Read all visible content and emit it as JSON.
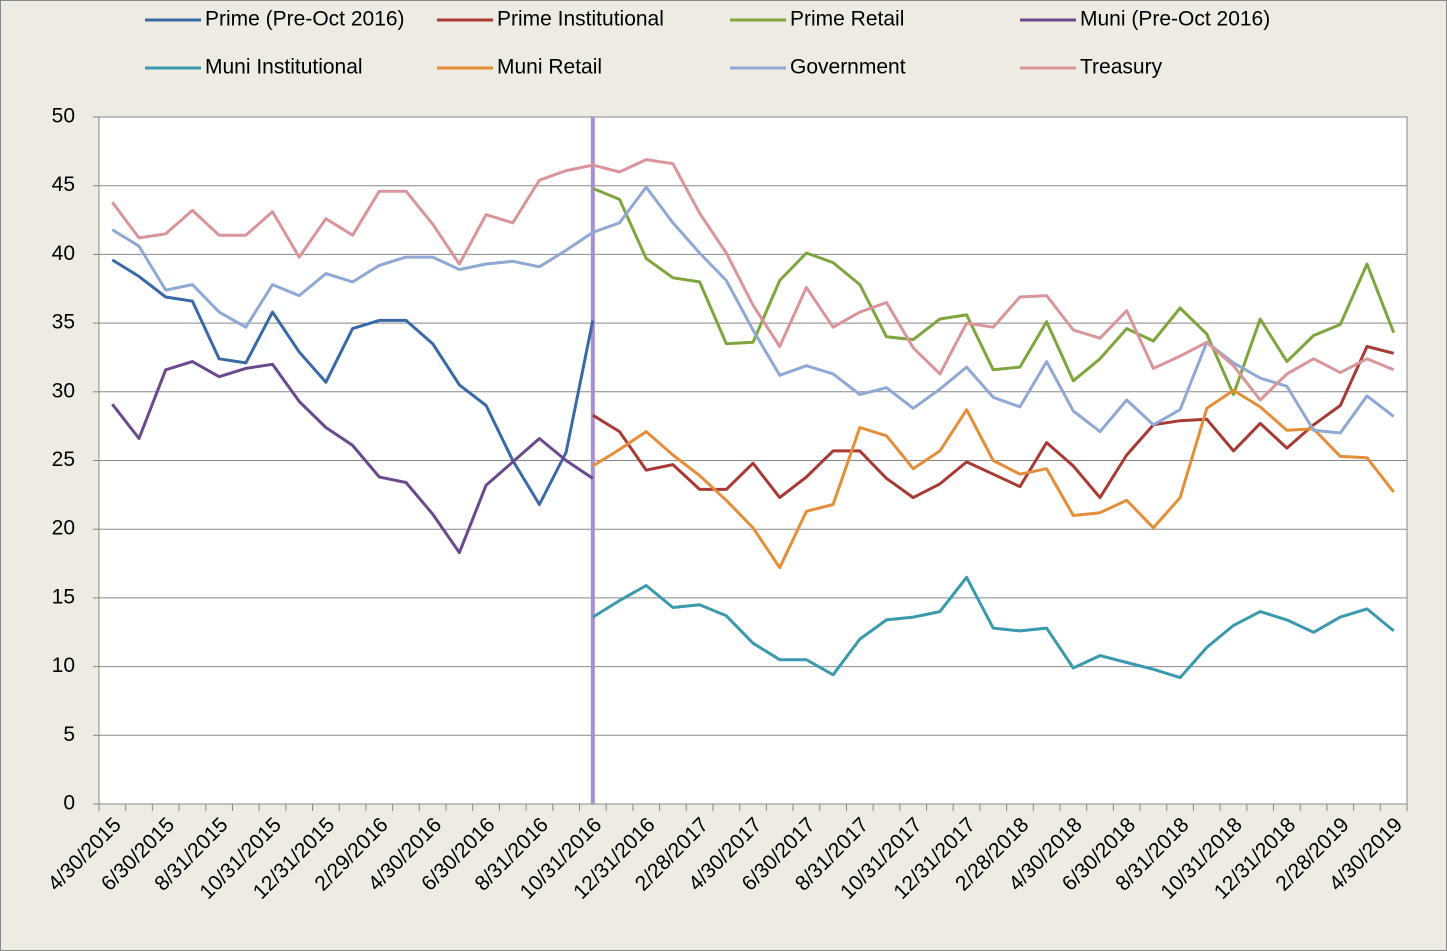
{
  "chart_data": {
    "type": "line",
    "categories": [
      "4/30/2015",
      null,
      "6/30/2015",
      null,
      "8/31/2015",
      null,
      "10/31/2015",
      null,
      "12/31/2015",
      null,
      "2/29/2016",
      null,
      "4/30/2016",
      null,
      "6/30/2016",
      null,
      "8/31/2016",
      null,
      "10/31/2016",
      null,
      "12/31/2016",
      null,
      "2/28/2017",
      null,
      "4/30/2017",
      null,
      "6/30/2017",
      null,
      "8/31/2017",
      null,
      "10/31/2017",
      null,
      "12/31/2017",
      null,
      "2/28/2018",
      null,
      "4/30/2018",
      null,
      "6/30/2018",
      null,
      "8/31/2018",
      null,
      "10/31/2018",
      null,
      "12/31/2018",
      null,
      "2/28/2019",
      null,
      "4/30/2019"
    ],
    "series": [
      {
        "name": "Prime (Pre-Oct 2016)",
        "color": "#3a6aa6",
        "values": [
          39.6,
          38.4,
          36.9,
          36.6,
          32.4,
          32.1,
          35.8,
          32.9,
          30.7,
          34.6,
          35.2,
          35.2,
          33.5,
          30.5,
          29.0,
          25.0,
          21.8,
          25.6,
          35.2,
          null,
          null,
          null,
          null,
          null,
          null,
          null,
          null,
          null,
          null,
          null,
          null,
          null,
          null,
          null,
          null,
          null,
          null,
          null,
          null,
          null,
          null,
          null,
          null,
          null,
          null,
          null,
          null,
          null,
          null
        ]
      },
      {
        "name": "Prime Institutional",
        "color": "#a83a35",
        "values": [
          null,
          null,
          null,
          null,
          null,
          null,
          null,
          null,
          null,
          null,
          null,
          null,
          null,
          null,
          null,
          null,
          null,
          null,
          28.3,
          27.1,
          24.3,
          24.7,
          22.9,
          22.9,
          24.8,
          22.3,
          23.8,
          25.7,
          25.7,
          23.7,
          22.3,
          23.3,
          24.9,
          24.0,
          23.1,
          26.3,
          24.6,
          22.3,
          25.4,
          27.6,
          27.9,
          28.0,
          25.7,
          27.7,
          25.9,
          27.6,
          29.0,
          33.3,
          32.8
        ]
      },
      {
        "name": "Prime Retail",
        "color": "#7fa63e",
        "values": [
          null,
          null,
          null,
          null,
          null,
          null,
          null,
          null,
          null,
          null,
          null,
          null,
          null,
          null,
          null,
          null,
          null,
          null,
          44.8,
          44.0,
          39.7,
          38.3,
          38.0,
          33.5,
          33.6,
          38.1,
          40.1,
          39.4,
          37.8,
          34.0,
          33.8,
          35.3,
          35.6,
          31.6,
          31.8,
          35.1,
          30.8,
          32.4,
          34.6,
          33.7,
          36.1,
          34.2,
          29.8,
          35.3,
          32.2,
          34.1,
          34.9,
          39.3,
          34.3
        ]
      },
      {
        "name": "Muni (Pre-Oct 2016)",
        "color": "#6a4a8c",
        "values": [
          29.1,
          26.6,
          31.6,
          32.2,
          31.1,
          31.7,
          32.0,
          29.3,
          27.4,
          26.1,
          23.8,
          23.4,
          21.1,
          18.3,
          23.2,
          24.9,
          26.6,
          25.0,
          23.7,
          null,
          null,
          null,
          null,
          null,
          null,
          null,
          null,
          null,
          null,
          null,
          null,
          null,
          null,
          null,
          null,
          null,
          null,
          null,
          null,
          null,
          null,
          null,
          null,
          null,
          null,
          null,
          null,
          null,
          null
        ]
      },
      {
        "name": "Muni Institutional",
        "color": "#3a9aad",
        "values": [
          null,
          null,
          null,
          null,
          null,
          null,
          null,
          null,
          null,
          null,
          null,
          null,
          null,
          null,
          null,
          null,
          null,
          null,
          13.6,
          14.8,
          15.9,
          14.3,
          14.5,
          13.7,
          11.7,
          10.5,
          10.5,
          9.4,
          12.0,
          13.4,
          13.6,
          14.0,
          16.5,
          12.8,
          12.6,
          12.8,
          9.9,
          10.8,
          10.3,
          9.8,
          9.2,
          11.4,
          13.0,
          14.0,
          13.4,
          12.5,
          13.6,
          14.2,
          12.6
        ]
      },
      {
        "name": "Muni Retail",
        "color": "#e58e3a",
        "values": [
          null,
          null,
          null,
          null,
          null,
          null,
          null,
          null,
          null,
          null,
          null,
          null,
          null,
          null,
          null,
          null,
          null,
          null,
          24.6,
          25.8,
          27.1,
          25.4,
          23.9,
          22.1,
          20.1,
          17.2,
          21.3,
          21.8,
          27.4,
          26.8,
          24.4,
          25.7,
          28.7,
          25.0,
          24.0,
          24.4,
          21.0,
          21.2,
          22.1,
          20.1,
          22.3,
          28.8,
          30.1,
          28.9,
          27.2,
          27.3,
          25.3,
          25.2,
          22.7
        ]
      },
      {
        "name": "Government",
        "color": "#8fa9d4",
        "values": [
          41.8,
          40.6,
          37.4,
          37.8,
          35.8,
          34.7,
          37.8,
          37.0,
          38.6,
          38.0,
          39.2,
          39.8,
          39.8,
          38.9,
          39.3,
          39.5,
          39.1,
          40.3,
          41.6,
          42.3,
          44.9,
          42.3,
          40.1,
          38.1,
          34.5,
          31.2,
          31.9,
          31.3,
          29.8,
          30.3,
          28.8,
          30.2,
          31.8,
          29.6,
          28.9,
          32.2,
          28.6,
          27.1,
          29.4,
          27.6,
          28.7,
          33.6,
          32.1,
          31.0,
          30.4,
          27.2,
          27.0,
          29.7,
          28.2
        ]
      },
      {
        "name": "Treasury",
        "color": "#d8959a",
        "values": [
          43.8,
          41.2,
          41.5,
          43.2,
          41.4,
          41.4,
          43.1,
          39.8,
          42.6,
          41.4,
          44.6,
          44.6,
          42.2,
          39.3,
          42.9,
          42.3,
          45.4,
          46.1,
          46.5,
          46.0,
          46.9,
          46.6,
          43.0,
          40.1,
          36.3,
          33.3,
          37.6,
          34.7,
          35.8,
          36.5,
          33.2,
          31.3,
          35.0,
          34.7,
          36.9,
          37.0,
          34.5,
          33.9,
          35.9,
          31.7,
          32.6,
          33.6,
          31.9,
          29.4,
          31.3,
          32.4,
          31.4,
          32.4,
          31.6
        ]
      }
    ],
    "ylim": [
      0,
      50
    ],
    "yticks": [
      0,
      5,
      10,
      15,
      20,
      25,
      30,
      35,
      40,
      45,
      50
    ],
    "grid": true,
    "legend": "top"
  }
}
